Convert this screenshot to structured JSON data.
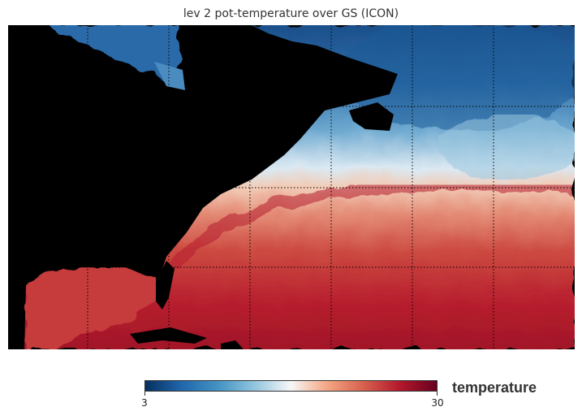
{
  "title": "lev 2 pot-temperature over GS (ICON)",
  "map": {
    "region": "GS",
    "land_color": "#000000",
    "gridline_style": "dotted"
  },
  "colorbar": {
    "label": "temperature",
    "min_label": "3",
    "max_label": "30",
    "min": 3,
    "max": 30,
    "colormap": "RdBu_r",
    "stops": [
      "#053061",
      "#2166ac",
      "#4393c3",
      "#92c5de",
      "#f7f7f7",
      "#f4a582",
      "#d6604d",
      "#b2182b",
      "#67001f"
    ]
  }
}
